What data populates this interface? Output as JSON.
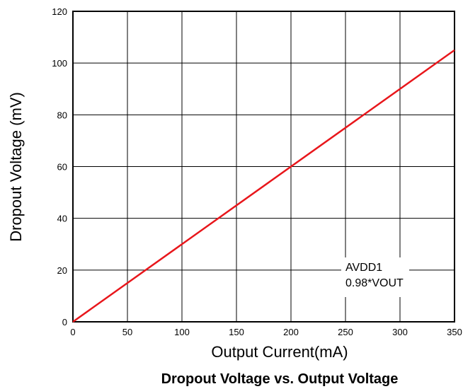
{
  "chart_data": {
    "type": "line",
    "title": "Dropout Voltage vs. Output Voltage",
    "x_label": "Output Current(mA)",
    "y_label": "Dropout Voltage (mV)",
    "annotations": [
      "AVDD1",
      "0.98*VOUT"
    ],
    "x": [
      0,
      350
    ],
    "series": [
      {
        "name": "AVDD1",
        "color": "#e8161b",
        "values": [
          0,
          105
        ]
      }
    ],
    "xlim": [
      0,
      350
    ],
    "xticks": [
      0,
      50,
      100,
      150,
      200,
      250,
      300,
      350
    ],
    "ylim": [
      0,
      120
    ],
    "yticks": [
      0,
      20,
      40,
      60,
      80,
      100,
      120
    ],
    "grid": true
  }
}
